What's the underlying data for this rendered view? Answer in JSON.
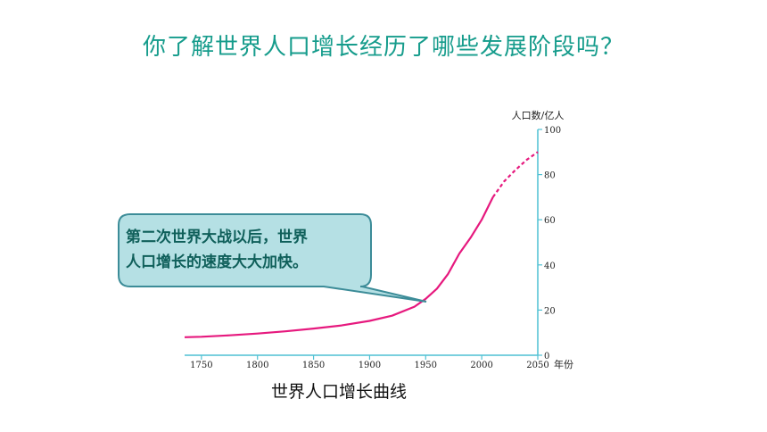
{
  "slide": {
    "title": "你了解世界人口增长经历了哪些发展阶段吗？",
    "caption": "世界人口增长曲线",
    "callout": {
      "line1": "第二次世界大战以后，世界",
      "line2": "人口增长的速度大大加快。"
    }
  },
  "colors": {
    "title": "#169c8c",
    "axis": "#4fc1d4",
    "curve": "#e6197e",
    "callout_fill": "#b5e0e4",
    "callout_border": "#3c8c98",
    "callout_text": "#0f5f5a"
  },
  "chart_data": {
    "type": "line",
    "title": "",
    "xlabel": "年份",
    "ylabel": "人口数/亿人",
    "xlim": [
      1735,
      2050
    ],
    "ylim": [
      0,
      100
    ],
    "x_ticks": [
      "1750",
      "1800",
      "1850",
      "1900",
      "1950",
      "2000",
      "2050"
    ],
    "y_ticks": [
      "0",
      "20",
      "40",
      "60",
      "80",
      "100"
    ],
    "x_tick_values": [
      1750,
      1800,
      1850,
      1900,
      1950,
      2000,
      2050
    ],
    "y_tick_values": [
      0,
      20,
      40,
      60,
      80,
      100
    ],
    "grid": false,
    "y_axis_side": "right",
    "series": [
      {
        "style": "solid",
        "x": [
          1735,
          1750,
          1775,
          1800,
          1825,
          1850,
          1875,
          1900,
          1920,
          1940,
          1950,
          1960,
          1970,
          1980,
          1990,
          2000,
          2010
        ],
        "y": [
          8,
          8.2,
          8.8,
          9.6,
          10.6,
          11.8,
          13.2,
          15.2,
          17.5,
          21.5,
          25,
          29.5,
          36,
          45,
          52,
          60,
          70
        ]
      },
      {
        "style": "dashed",
        "x": [
          2010,
          2020,
          2030,
          2040,
          2050
        ],
        "y": [
          70,
          77,
          82,
          86.5,
          90
        ]
      }
    ]
  }
}
